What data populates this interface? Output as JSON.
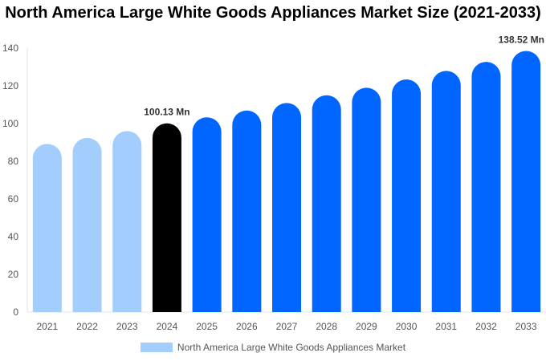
{
  "chart_data": {
    "type": "bar",
    "title": "North America Large White Goods Appliances Market Size (2021-2033)",
    "categories": [
      "2021",
      "2022",
      "2023",
      "2024",
      "2025",
      "2026",
      "2027",
      "2028",
      "2029",
      "2030",
      "2031",
      "2032",
      "2033"
    ],
    "series": [
      {
        "name": "North America Large White Goods Appliances Market",
        "values": [
          89.2,
          92.4,
          96.0,
          100.13,
          103.3,
          106.9,
          110.9,
          115.0,
          119.0,
          123.4,
          127.9,
          132.7,
          138.52
        ]
      }
    ],
    "data_labels": {
      "3": "100.13 Mn",
      "12": "138.52 Mn"
    },
    "ylim": [
      0,
      140
    ],
    "yticks": [
      0,
      20,
      40,
      60,
      80,
      100,
      120,
      140
    ],
    "grid": false,
    "legend_position": "bottom",
    "colors": {
      "historical": "#a3cdfd",
      "current": "#000000",
      "forecast": "#0066ff"
    }
  }
}
